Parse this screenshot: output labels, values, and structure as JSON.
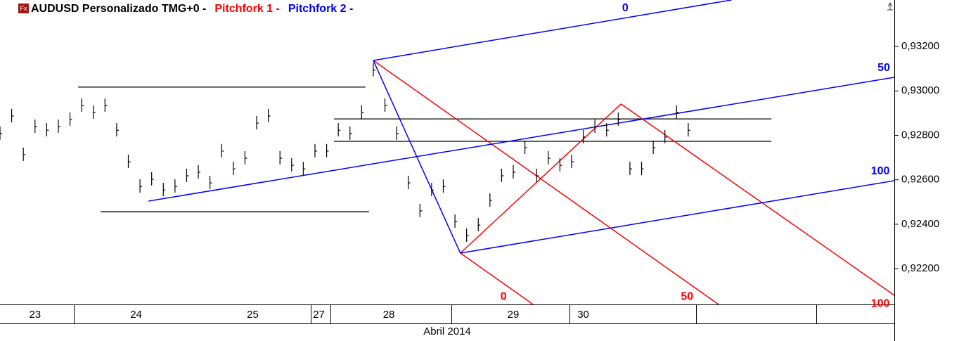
{
  "chart_data": {
    "type": "ohlc",
    "legend": [
      {
        "text": "AUDUSD Personalizado TMG+0 -",
        "color": "#000000"
      },
      {
        "text": "Pitchfork 1 -",
        "color": "#ff0000"
      },
      {
        "text": "Pitchfork 2 -",
        "color": "#0000ff"
      }
    ],
    "x_label": "Abril 2014",
    "xlim": [
      0,
      230
    ],
    "xticks": [
      {
        "value": 9,
        "label": "23"
      },
      {
        "value": 35,
        "label": "24"
      },
      {
        "value": 65,
        "label": "25"
      },
      {
        "value": 82,
        "label": "27"
      },
      {
        "value": 100,
        "label": "28"
      },
      {
        "value": 132,
        "label": "29"
      },
      {
        "value": 150,
        "label": "30"
      }
    ],
    "day_boundaries": [
      19,
      80,
      85,
      116,
      146.5,
      179,
      210
    ],
    "ylim": [
      0.92039,
      0.93409
    ],
    "yticks": [
      {
        "value": 0.922,
        "label": "0,92200"
      },
      {
        "value": 0.924,
        "label": "0,92400"
      },
      {
        "value": 0.926,
        "label": "0,92600"
      },
      {
        "value": 0.928,
        "label": "0,92800"
      },
      {
        "value": 0.93,
        "label": "0,93000"
      },
      {
        "value": 0.932,
        "label": "0,93200"
      }
    ],
    "color": "#000000",
    "x": [
      0,
      3,
      6,
      9,
      12,
      15,
      18,
      21,
      24,
      27,
      30,
      33,
      36,
      39,
      42,
      45,
      48,
      51,
      54,
      57,
      60,
      63,
      66,
      69,
      72,
      75,
      78,
      81,
      84,
      87,
      90,
      93,
      96,
      99,
      102,
      105,
      108,
      111,
      114,
      117,
      120,
      123,
      126,
      129,
      132,
      135,
      138,
      141,
      144,
      147,
      150,
      153,
      156,
      159,
      162,
      165,
      168,
      171,
      174,
      177
    ],
    "high": [
      0.9284,
      0.92919,
      0.92745,
      0.92871,
      0.92855,
      0.92871,
      0.92903,
      0.92966,
      0.92935,
      0.92966,
      0.92855,
      0.92713,
      0.92602,
      0.92634,
      0.92586,
      0.92602,
      0.9265,
      0.92666,
      0.92618,
      0.92761,
      0.92681,
      0.92729,
      0.92887,
      0.92919,
      0.92729,
      0.92697,
      0.92681,
      0.92761,
      0.92761,
      0.92855,
      0.9284,
      0.92935,
      0.93125,
      0.92966,
      0.9284,
      0.92618,
      0.92492,
      0.92586,
      0.92602,
      0.92444,
      0.92381,
      0.92428,
      0.92539,
      0.9265,
      0.92666,
      0.92776,
      0.9265,
      0.92729,
      0.92697,
      0.92713,
      0.92824,
      0.92871,
      0.92855,
      0.92903,
      0.92681,
      0.92681,
      0.92776,
      0.92824,
      0.92935,
      0.92855
    ],
    "low": [
      0.9278,
      0.92859,
      0.92685,
      0.92811,
      0.92795,
      0.92811,
      0.92843,
      0.92906,
      0.92875,
      0.92906,
      0.92795,
      0.92653,
      0.92542,
      0.92574,
      0.92526,
      0.92542,
      0.9259,
      0.92606,
      0.92558,
      0.92701,
      0.92621,
      0.92669,
      0.92827,
      0.92859,
      0.92669,
      0.92637,
      0.92621,
      0.92701,
      0.92701,
      0.92795,
      0.9278,
      0.92875,
      0.93065,
      0.92906,
      0.9278,
      0.92558,
      0.92432,
      0.92526,
      0.92542,
      0.92384,
      0.92321,
      0.92368,
      0.92479,
      0.9259,
      0.92606,
      0.92716,
      0.9259,
      0.92669,
      0.92637,
      0.92653,
      0.92764,
      0.92811,
      0.92795,
      0.92843,
      0.92621,
      0.92621,
      0.92716,
      0.92764,
      0.92875,
      0.92795
    ],
    "close": [
      0.92808,
      0.92887,
      0.92713,
      0.92839,
      0.92823,
      0.92839,
      0.92871,
      0.92934,
      0.92903,
      0.92934,
      0.92823,
      0.92681,
      0.9257,
      0.92602,
      0.92554,
      0.9257,
      0.92618,
      0.92634,
      0.92586,
      0.92729,
      0.92649,
      0.92697,
      0.92855,
      0.92887,
      0.92697,
      0.92665,
      0.92649,
      0.92729,
      0.92729,
      0.92823,
      0.92808,
      0.92903,
      0.93093,
      0.92934,
      0.92808,
      0.92586,
      0.9246,
      0.92554,
      0.9257,
      0.92412,
      0.92349,
      0.92396,
      0.92507,
      0.92618,
      0.92634,
      0.92744,
      0.92618,
      0.92697,
      0.92665,
      0.92681,
      0.92792,
      0.92839,
      0.92823,
      0.92871,
      0.92649,
      0.92649,
      0.92744,
      0.92792,
      0.92903,
      0.92823
    ],
    "hlines": [
      {
        "y": 0.93017,
        "x": [
          20.1,
          94.0
        ]
      },
      {
        "y": 0.92456,
        "x": [
          25.9,
          94.9
        ]
      },
      {
        "y": 0.92874,
        "x": [
          85.9,
          198.4
        ]
      },
      {
        "y": 0.92773,
        "x": [
          85.9,
          198.4
        ]
      }
    ],
    "pitchforks": [
      {
        "name": "Pitchfork 1",
        "color": "#ff0000",
        "handle": [
          [
            118.4,
            0.9227
          ],
          [
            159.7,
            0.92941
          ]
        ],
        "lines": [
          {
            "label": "0",
            "from": [
              118.4,
              0.9227
            ],
            "to": [
              137.1,
              0.92039
            ],
            "label_at": [
              129.5,
              0.92073
            ]
          },
          {
            "label": "50",
            "from": [
              96.0,
              0.93137
            ],
            "to": [
              184.8,
              0.92039
            ],
            "label_at": [
              176.7,
              0.92073
            ]
          },
          {
            "label": "100",
            "from": [
              159.7,
              0.92941
            ],
            "to": [
              230,
              0.9208
            ],
            "label_at": [
              226.4,
              0.92042
            ]
          }
        ]
      },
      {
        "name": "Pitchfork 2",
        "color": "#0000ff",
        "handle": [
          [
            96.0,
            0.93137
          ],
          [
            118.4,
            0.9227
          ]
        ],
        "lines": [
          {
            "label": "0",
            "from": [
              96.0,
              0.93137
            ],
            "to": [
              188.1,
              0.93409
            ],
            "label_at": [
              160.8,
              0.93371
            ]
          },
          {
            "label": "50",
            "from": [
              38.2,
              0.92504
            ],
            "to": [
              230,
              0.93061
            ],
            "label_at": [
              227.3,
              0.93102
            ]
          },
          {
            "label": "100",
            "from": [
              118.4,
              0.9227
            ],
            "to": [
              230,
              0.92596
            ],
            "label_at": [
              226.4,
              0.92637
            ]
          }
        ]
      }
    ]
  }
}
